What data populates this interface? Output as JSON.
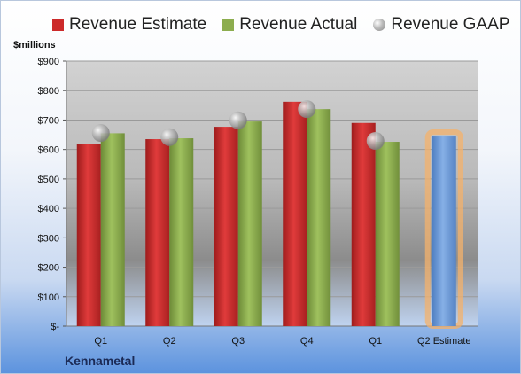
{
  "legend": {
    "estimate": "Revenue Estimate",
    "actual": "Revenue Actual",
    "gaap": "Revenue GAAP"
  },
  "unit_label": "$millions",
  "company": "Kennametal",
  "colors": {
    "estimate": "#cc2a2a",
    "actual": "#8cad4e",
    "gaap": "#b8b8b8",
    "forecast": "#6c9ad8",
    "highlight": "#f4b26b"
  },
  "chart_data": {
    "type": "bar",
    "categories": [
      "Q1",
      "Q2",
      "Q3",
      "Q4",
      "Q1",
      "Q2 Estimate"
    ],
    "series": [
      {
        "name": "Revenue Estimate",
        "values": [
          618,
          635,
          677,
          762,
          690,
          644
        ]
      },
      {
        "name": "Revenue Actual",
        "values": [
          655,
          638,
          695,
          737,
          626,
          null
        ]
      },
      {
        "name": "Revenue GAAP",
        "values": [
          656,
          642,
          699,
          737,
          629,
          null
        ]
      }
    ],
    "ylim": [
      0,
      900
    ],
    "yticks": [
      0,
      100,
      200,
      300,
      400,
      500,
      600,
      700,
      800,
      900
    ],
    "ytick_labels": [
      "$-",
      "$100",
      "$200",
      "$300",
      "$400",
      "$500",
      "$600",
      "$700",
      "$800",
      "$900"
    ],
    "ylabel": "$millions",
    "grid": true,
    "legend_position": "top"
  }
}
